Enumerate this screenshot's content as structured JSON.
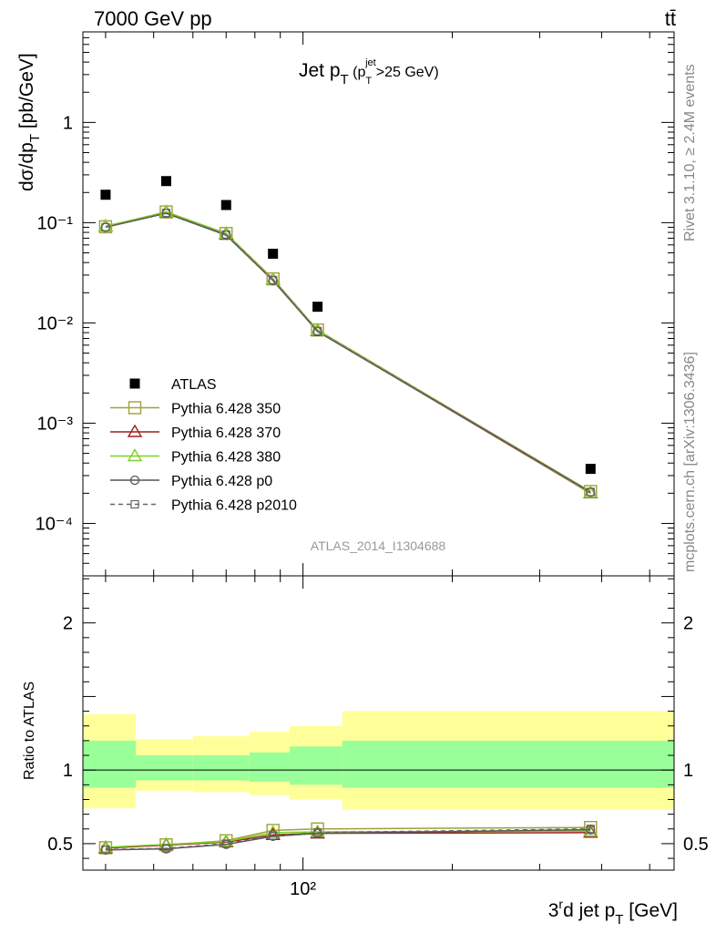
{
  "header": {
    "left_label": "7000 GeV pp",
    "right_label": "tt̄"
  },
  "side_labels": {
    "rivet": "Rivet 3.1.10, ≥ 2.4M events",
    "mcplots": "mcplots.cern.ch [arXiv:1306.3436]"
  },
  "chart_data": [
    {
      "type": "line",
      "panel": "main",
      "title": "Jet p_T (p_T^jet>25 GeV)",
      "ylabel": "dσ/dp_T [pb/GeV]",
      "xscale": "log",
      "yscale": "log",
      "xlim": [
        36,
        560
      ],
      "ylim": [
        3e-05,
        8
      ],
      "y_tick_labels": [
        "10⁻⁴",
        "10⁻³",
        "10⁻²",
        "10⁻¹",
        "1"
      ],
      "watermark": "ATLAS_2014_I1304688",
      "legend_position": "lower-left",
      "x": [
        40,
        53,
        70,
        87,
        107,
        380
      ],
      "series": [
        {
          "name": "ATLAS",
          "color": "#000000",
          "marker": "filled-square",
          "line": "none",
          "values": [
            0.19,
            0.26,
            0.15,
            0.049,
            0.0145,
            0.00035
          ]
        },
        {
          "name": "Pythia 6.428 350",
          "color": "#a0a03c",
          "marker": "open-square",
          "line": "solid",
          "values": [
            0.091,
            0.128,
            0.078,
            0.0275,
            0.0085,
            0.000208
          ]
        },
        {
          "name": "Pythia 6.428 370",
          "color": "#a01f1f",
          "marker": "open-triangle",
          "line": "solid",
          "values": [
            0.092,
            0.127,
            0.077,
            0.027,
            0.0083,
            0.0002
          ]
        },
        {
          "name": "Pythia 6.428 380",
          "color": "#7ed321",
          "marker": "open-triangle",
          "line": "solid",
          "values": [
            0.092,
            0.128,
            0.078,
            0.027,
            0.0084,
            0.000202
          ]
        },
        {
          "name": "Pythia 6.428 p0",
          "color": "#555555",
          "marker": "open-circle",
          "line": "solid",
          "values": [
            0.09,
            0.124,
            0.075,
            0.0265,
            0.0082,
            0.000205
          ]
        },
        {
          "name": "Pythia 6.428 p2010",
          "color": "#666666",
          "marker": "open-square-small",
          "line": "dashed",
          "values": [
            0.09,
            0.125,
            0.076,
            0.0268,
            0.0083,
            0.000206
          ]
        }
      ]
    },
    {
      "type": "line",
      "panel": "ratio",
      "ylabel": "Ratio to ATLAS",
      "xlabel": "3^rd jet p_T [GeV]",
      "xscale": "log",
      "xlim": [
        36,
        560
      ],
      "ylim": [
        0.32,
        2.32
      ],
      "y_tick_labels": [
        "0.5",
        "1",
        "2"
      ],
      "x_tick_labels": [
        "10²"
      ],
      "bins": [
        [
          36,
          46
        ],
        [
          46,
          60
        ],
        [
          60,
          78
        ],
        [
          78,
          94
        ],
        [
          94,
          120
        ],
        [
          120,
          560
        ]
      ],
      "band_yellow": [
        [
          0.74,
          1.38
        ],
        [
          0.86,
          1.21
        ],
        [
          0.85,
          1.23
        ],
        [
          0.83,
          1.26
        ],
        [
          0.8,
          1.3
        ],
        [
          0.73,
          1.4
        ]
      ],
      "band_green": [
        [
          0.88,
          1.2
        ],
        [
          0.93,
          1.1
        ],
        [
          0.93,
          1.1
        ],
        [
          0.92,
          1.12
        ],
        [
          0.9,
          1.16
        ],
        [
          0.88,
          1.2
        ]
      ],
      "x": [
        40,
        53,
        70,
        87,
        107,
        380
      ],
      "series": [
        {
          "name": "Pythia 6.428 350",
          "color": "#a0a03c",
          "values": [
            0.472,
            0.492,
            0.52,
            0.59,
            0.6,
            0.61
          ]
        },
        {
          "name": "Pythia 6.428 370",
          "color": "#a01f1f",
          "values": [
            0.47,
            0.49,
            0.51,
            0.56,
            0.57,
            0.575
          ]
        },
        {
          "name": "Pythia 6.428 380",
          "color": "#7ed321",
          "values": [
            0.475,
            0.495,
            0.515,
            0.575,
            0.58,
            0.585
          ]
        },
        {
          "name": "Pythia 6.428 p0",
          "color": "#555555",
          "values": [
            0.457,
            0.465,
            0.495,
            0.55,
            0.57,
            0.595
          ]
        },
        {
          "name": "Pythia 6.428 p2010",
          "color": "#666666",
          "values": [
            0.46,
            0.468,
            0.5,
            0.555,
            0.575,
            0.6
          ]
        }
      ]
    }
  ]
}
